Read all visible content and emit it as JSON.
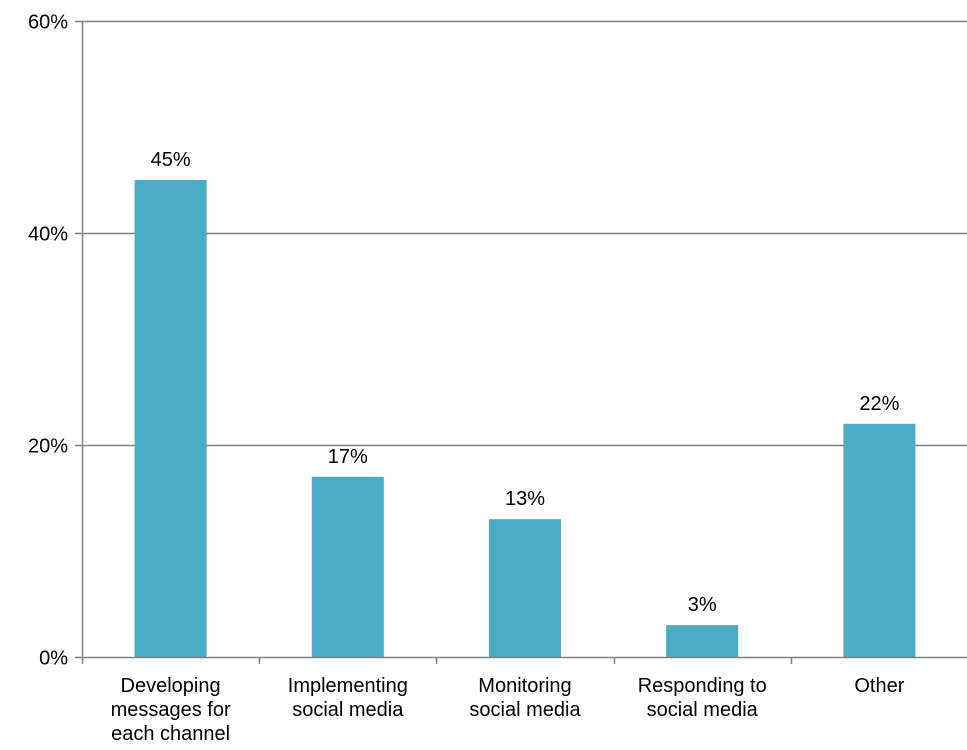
{
  "chart_data": {
    "type": "bar",
    "categories": [
      [
        "Developing",
        "messages for",
        "each channel"
      ],
      [
        "Implementing",
        "social media"
      ],
      [
        "Monitoring",
        "social media"
      ],
      [
        "Responding to",
        "social media"
      ],
      [
        "Other"
      ]
    ],
    "values": [
      45,
      17,
      13,
      3,
      22
    ],
    "data_labels": [
      "45%",
      "17%",
      "13%",
      "3%",
      "22%"
    ],
    "ylim": [
      0,
      60
    ],
    "yticks": [
      0,
      20,
      40,
      60
    ],
    "ytick_labels": [
      "0%",
      "20%",
      "40%",
      "60%"
    ],
    "grid": true,
    "bar_color": "#4bacc6",
    "grid_color": "#808080"
  }
}
